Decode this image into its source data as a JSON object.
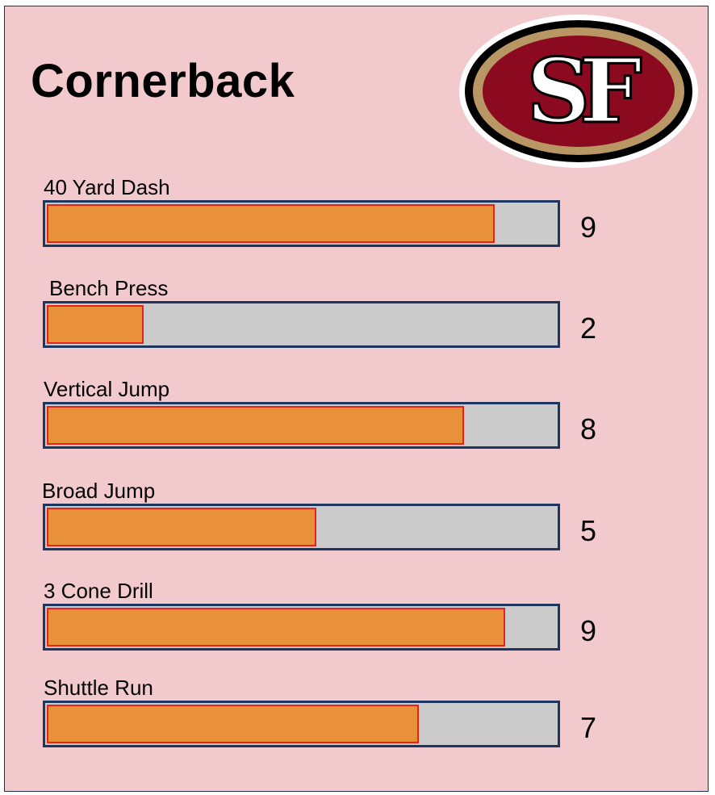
{
  "chart_data": {
    "type": "bar",
    "title": "Cornerback",
    "categories": [
      "40 Yard Dash",
      "Bench Press",
      "Vertical Jump",
      "Broad Jump",
      "3 Cone Drill",
      "Shuttle Run"
    ],
    "values": [
      9,
      2,
      8,
      5,
      9,
      7
    ],
    "fill_fractions": [
      0.88,
      0.19,
      0.82,
      0.53,
      0.9,
      0.73
    ],
    "orientation": "horizontal"
  },
  "logo": {
    "text": "SF",
    "colors": {
      "red": "#8b0a1f",
      "gold": "#b99764",
      "black": "#000000"
    }
  },
  "colors": {
    "background": "#f2cace",
    "bar_fill": "#e8913a",
    "bar_outline": "#e8221b",
    "track": "#cbcbcb",
    "track_border": "#1d3660"
  }
}
